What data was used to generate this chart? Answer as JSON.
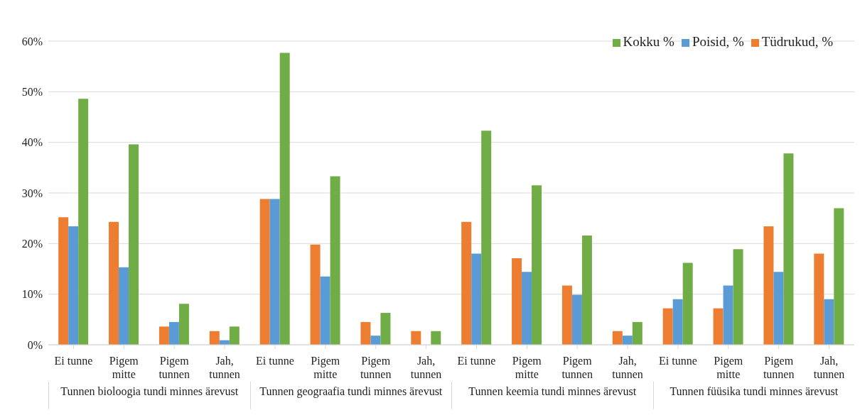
{
  "chart_data": {
    "type": "bar",
    "categories": [
      "Ei tunne",
      "Pigem mitte",
      "Pigem tunnen",
      "Jah, tunnen",
      "Ei tunne",
      "Pigem mitte",
      "Pigem tunnen",
      "Jah, tunnen",
      "Ei tunne",
      "Pigem mitte",
      "Pigem tunnen",
      "Jah, tunnen",
      "Ei tunne",
      "Pigem mitte",
      "Pigem tunnen",
      "Jah, tunnen"
    ],
    "series": [
      {
        "name": "Tüdrukud, %",
        "color": "#ed7d31",
        "values": [
          25.2,
          24.3,
          3.6,
          2.7,
          28.8,
          19.8,
          4.5,
          2.7,
          24.3,
          17.1,
          11.7,
          2.7,
          7.2,
          7.2,
          23.4,
          18.0
        ]
      },
      {
        "name": "Poisid, %",
        "color": "#5b9bd5",
        "values": [
          23.4,
          15.3,
          4.5,
          0.9,
          28.8,
          13.5,
          1.8,
          0,
          18.0,
          14.4,
          9.9,
          1.8,
          9.0,
          11.7,
          14.4,
          9.0
        ]
      },
      {
        "name": "Kokku %",
        "color": "#70ad47",
        "values": [
          48.6,
          39.6,
          8.1,
          3.6,
          57.7,
          33.3,
          6.3,
          2.7,
          42.3,
          31.5,
          21.6,
          4.5,
          16.2,
          18.9,
          37.8,
          27.0
        ]
      }
    ],
    "ylim": [
      0,
      60
    ],
    "yticks": [
      {
        "value": 0,
        "label": "0%"
      },
      {
        "value": 10,
        "label": "10%"
      },
      {
        "value": 20,
        "label": "20%"
      },
      {
        "value": 30,
        "label": "30%"
      },
      {
        "value": 40,
        "label": "40%"
      },
      {
        "value": 50,
        "label": "50%"
      },
      {
        "value": 60,
        "label": "60%"
      }
    ],
    "grid": "y",
    "legend": "top right",
    "annotations": [
      "Tunnen bioloogia tundi minnes ärevust",
      "Tunnen geograafia tundi minnes ärevust",
      "Tunnen keemia tundi minnes ärevust",
      "Tunnen füüsika tundi minnes ärevust"
    ]
  }
}
